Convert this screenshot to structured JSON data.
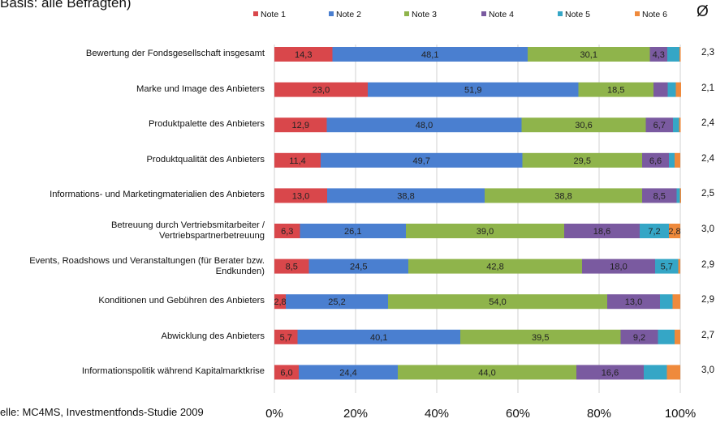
{
  "header_text": "Basis: alle Befragten)",
  "source_text": "elle: MC4MS, Investmentfonds-Studie 2009",
  "avg_header": "Ø",
  "chart_data": {
    "type": "bar",
    "orientation": "horizontal",
    "stacked": true,
    "title": "",
    "xlabel": "",
    "ylabel": "",
    "xlim": [
      0,
      100
    ],
    "x_ticks": [
      "0%",
      "20%",
      "40%",
      "60%",
      "80%",
      "100%"
    ],
    "legend_position": "top",
    "categories": [
      "Bewertung der Fondsgesellschaft insgesamt",
      "Marke und Image des Anbieters",
      "Produktpalette des Anbieters",
      "Produktqualität des Anbieters",
      "Informations- und Marketingmaterialien des Anbieters",
      "Betreuung durch Vertriebsmitarbeiter / Vertriebspartnerbetreuung",
      "Events, Roadshows und Veranstaltungen (für Berater bzw. Endkunden)",
      "Konditionen und Gebühren des Anbieters",
      "Abwicklung des Anbieters",
      "Informationspolitik während Kapitalmarktkrise"
    ],
    "series": [
      {
        "name": "Note 1",
        "color": "#d9474b",
        "values": [
          14.3,
          23.0,
          12.9,
          11.4,
          13.0,
          6.3,
          8.5,
          2.8,
          5.7,
          6.0
        ],
        "labels": [
          "14,3",
          "23,0",
          "12,9",
          "11,4",
          "13,0",
          "6,3",
          "8,5",
          "2,8",
          "5,7",
          "6,0"
        ]
      },
      {
        "name": "Note 2",
        "color": "#4a7fd0",
        "values": [
          48.1,
          51.9,
          48.0,
          49.7,
          38.8,
          26.1,
          24.5,
          25.2,
          40.1,
          24.4
        ],
        "labels": [
          "48,1",
          "51,9",
          "48,0",
          "49,7",
          "38,8",
          "26,1",
          "24,5",
          "25,2",
          "40,1",
          "24,4"
        ]
      },
      {
        "name": "Note 3",
        "color": "#8fb44b",
        "values": [
          30.1,
          18.5,
          30.6,
          29.5,
          38.8,
          39.0,
          42.8,
          54.0,
          39.5,
          44.0
        ],
        "labels": [
          "30,1",
          "18,5",
          "30,6",
          "29,5",
          "38,8",
          "39,0",
          "42,8",
          "54,0",
          "39,5",
          "44,0"
        ]
      },
      {
        "name": "Note 4",
        "color": "#7a5aa0",
        "values": [
          4.3,
          3.5,
          6.7,
          6.6,
          8.5,
          18.6,
          18.0,
          13.0,
          9.2,
          16.6
        ],
        "labels": [
          "4,3",
          "",
          "6,7",
          "6,6",
          "8,5",
          "18,6",
          "18,0",
          "13,0",
          "9,2",
          "16,6"
        ]
      },
      {
        "name": "Note 5",
        "color": "#35a6c6",
        "values": [
          3.0,
          2.0,
          1.5,
          1.4,
          0.8,
          7.2,
          5.7,
          3.1,
          4.1,
          5.7
        ],
        "labels": [
          "",
          "",
          "",
          "",
          "",
          "7,2",
          "5,7",
          "",
          "",
          ""
        ]
      },
      {
        "name": "Note 6",
        "color": "#ef8a3c",
        "values": [
          0.3,
          1.3,
          0.4,
          1.4,
          0.3,
          2.8,
          0.5,
          1.9,
          1.4,
          3.3
        ],
        "labels": [
          "",
          "",
          "",
          "",
          "",
          "2,8",
          "",
          "",
          "",
          ""
        ]
      }
    ],
    "averages": [
      "2,3",
      "2,1",
      "2,4",
      "2,4",
      "2,5",
      "3,0",
      "2,9",
      "2,9",
      "2,7",
      "3,0"
    ]
  }
}
